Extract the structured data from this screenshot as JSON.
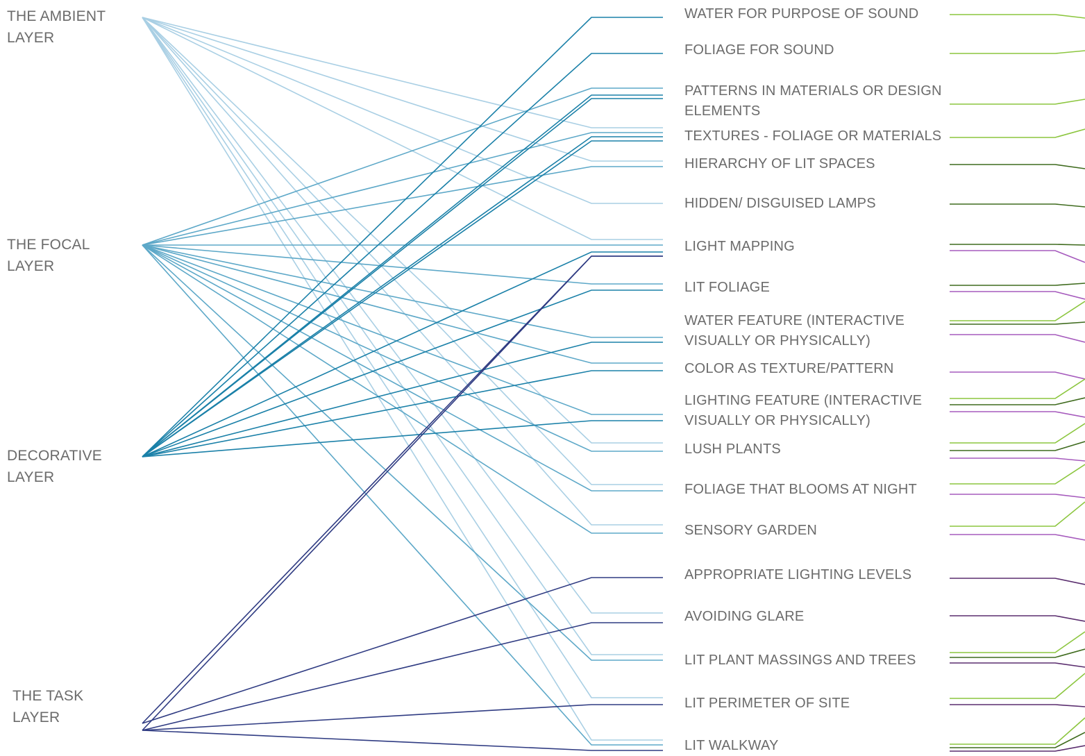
{
  "layers": [
    {
      "label": "THE AMBIENT LAYER"
    },
    {
      "label": "THE FOCAL LAYER"
    },
    {
      "label": "DECORATIVE LAYER"
    },
    {
      "label": "THE TASK LAYER"
    }
  ],
  "items": [
    {
      "label": "WATER FOR PURPOSE OF SOUND"
    },
    {
      "label": "FOLIAGE FOR SOUND"
    },
    {
      "label": "PATTERNS IN MATERIALS OR DESIGN ELEMENTS"
    },
    {
      "label": "TEXTURES - FOLIAGE OR MATERIALS"
    },
    {
      "label": "HIERARCHY OF LIT SPACES"
    },
    {
      "label": "HIDDEN/ DISGUISED LAMPS"
    },
    {
      "label": "LIGHT MAPPING"
    },
    {
      "label": "LIT FOLIAGE"
    },
    {
      "label": "WATER FEATURE (INTERACTIVE VISUALLY OR PHYSICALLY)"
    },
    {
      "label": "COLOR AS TEXTURE/PATTERN"
    },
    {
      "label": "LIGHTING FEATURE (INTERACTIVE VISUALLY OR PHYSICALLY)"
    },
    {
      "label": "LUSH PLANTS"
    },
    {
      "label": "FOLIAGE THAT BLOOMS AT NIGHT"
    },
    {
      "label": "SENSORY GARDEN"
    },
    {
      "label": "APPROPRIATE LIGHTING LEVELS"
    },
    {
      "label": "AVOIDING GLARE"
    },
    {
      "label": "LIT PLANT MASSINGS AND TREES"
    },
    {
      "label": "LIT PERIMETER OF SITE"
    },
    {
      "label": "LIT WALKWAY"
    }
  ]
}
